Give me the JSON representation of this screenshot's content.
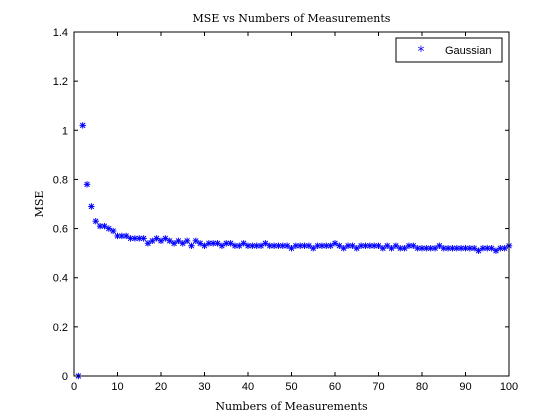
{
  "chart_data": {
    "type": "scatter",
    "title": "MSE vs Numbers of Measurements",
    "xlabel": "Numbers of Measurements",
    "ylabel": "MSE",
    "xlim": [
      0,
      100
    ],
    "ylim": [
      0,
      1.4
    ],
    "xticks": [
      0,
      10,
      20,
      30,
      40,
      50,
      60,
      70,
      80,
      90,
      100
    ],
    "yticks": [
      0,
      0.2,
      0.4,
      0.6,
      0.8,
      1,
      1.2,
      1.4
    ],
    "grid": false,
    "legend_position": "top-right",
    "marker": "*",
    "series": [
      {
        "name": "Gaussian",
        "color": "#0000ff",
        "x": [
          1,
          2,
          3,
          4,
          5,
          6,
          7,
          8,
          9,
          10,
          11,
          12,
          13,
          14,
          15,
          16,
          17,
          18,
          19,
          20,
          21,
          22,
          23,
          24,
          25,
          26,
          27,
          28,
          29,
          30,
          31,
          32,
          33,
          34,
          35,
          36,
          37,
          38,
          39,
          40,
          41,
          42,
          43,
          44,
          45,
          46,
          47,
          48,
          49,
          50,
          51,
          52,
          53,
          54,
          55,
          56,
          57,
          58,
          59,
          60,
          61,
          62,
          63,
          64,
          65,
          66,
          67,
          68,
          69,
          70,
          71,
          72,
          73,
          74,
          75,
          76,
          77,
          78,
          79,
          80,
          81,
          82,
          83,
          84,
          85,
          86,
          87,
          88,
          89,
          90,
          91,
          92,
          93,
          94,
          95,
          96,
          97,
          98,
          99,
          100
        ],
        "y": [
          0.0,
          1.02,
          0.78,
          0.69,
          0.63,
          0.61,
          0.61,
          0.6,
          0.59,
          0.57,
          0.57,
          0.57,
          0.56,
          0.56,
          0.56,
          0.56,
          0.54,
          0.55,
          0.56,
          0.55,
          0.56,
          0.55,
          0.54,
          0.55,
          0.54,
          0.55,
          0.53,
          0.55,
          0.54,
          0.53,
          0.54,
          0.54,
          0.54,
          0.53,
          0.54,
          0.54,
          0.53,
          0.53,
          0.54,
          0.53,
          0.53,
          0.53,
          0.53,
          0.54,
          0.53,
          0.53,
          0.53,
          0.53,
          0.53,
          0.52,
          0.53,
          0.53,
          0.53,
          0.53,
          0.52,
          0.53,
          0.53,
          0.53,
          0.53,
          0.54,
          0.53,
          0.52,
          0.53,
          0.53,
          0.52,
          0.53,
          0.53,
          0.53,
          0.53,
          0.53,
          0.52,
          0.53,
          0.52,
          0.53,
          0.52,
          0.52,
          0.53,
          0.53,
          0.52,
          0.52,
          0.52,
          0.52,
          0.52,
          0.53,
          0.52,
          0.52,
          0.52,
          0.52,
          0.52,
          0.52,
          0.52,
          0.52,
          0.51,
          0.52,
          0.52,
          0.52,
          0.51,
          0.52,
          0.52,
          0.53
        ]
      }
    ]
  }
}
